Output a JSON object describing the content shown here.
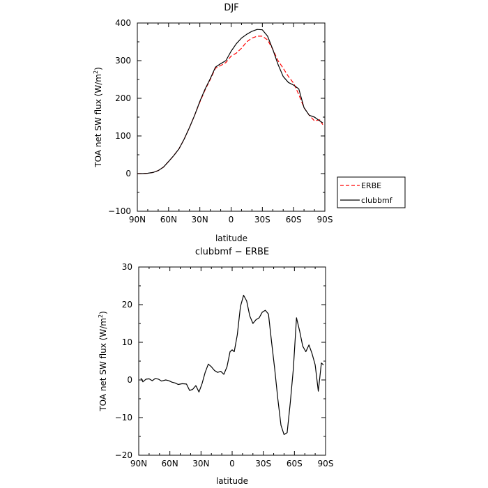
{
  "chart_data": [
    {
      "type": "line",
      "title": "DJF",
      "xlabel": "latitude",
      "ylabel": "TOA net SW flux (W/m",
      "ylabel_sup": "2",
      "ylabel_close": ")",
      "xlim": [
        90,
        -90
      ],
      "ylim": [
        -100,
        400
      ],
      "x_ticks": [
        90,
        60,
        30,
        0,
        -30,
        -60,
        -90
      ],
      "x_tick_labels": [
        "90N",
        "60N",
        "30N",
        "0",
        "30S",
        "60S",
        "90S"
      ],
      "y_ticks": [
        -100,
        0,
        100,
        200,
        300,
        400
      ],
      "y_tick_labels": [
        "−100",
        "0",
        "100",
        "200",
        "300",
        "400"
      ],
      "legend": {
        "placement": "right",
        "entries": [
          {
            "name": "ERBE",
            "color": "#ff0000",
            "dash": true
          },
          {
            "name": "clubbmf",
            "color": "#000000",
            "dash": false
          }
        ]
      },
      "series": [
        {
          "name": "ERBE",
          "color": "#ff0000",
          "dashed": true,
          "x": [
            90,
            85,
            80,
            75,
            70,
            65,
            60,
            55,
            50,
            45,
            40,
            35,
            30,
            25,
            20,
            15,
            10,
            5,
            0,
            -5,
            -10,
            -15,
            -20,
            -25,
            -30,
            -35,
            -40,
            -45,
            -50,
            -55,
            -60,
            -65,
            -70,
            -75,
            -80,
            -85,
            -88
          ],
          "y": [
            0,
            0,
            1,
            3,
            8,
            17,
            32,
            48,
            66,
            92,
            122,
            155,
            190,
            222,
            250,
            280,
            287,
            295,
            312,
            320,
            333,
            350,
            360,
            365,
            365,
            355,
            330,
            300,
            280,
            258,
            240,
            210,
            175,
            155,
            140,
            143,
            130
          ]
        },
        {
          "name": "clubbmf",
          "color": "#000000",
          "dashed": false,
          "x": [
            90,
            85,
            80,
            75,
            70,
            65,
            60,
            55,
            50,
            45,
            40,
            35,
            30,
            25,
            20,
            15,
            10,
            5,
            0,
            -5,
            -10,
            -15,
            -20,
            -25,
            -30,
            -35,
            -40,
            -45,
            -50,
            -55,
            -60,
            -65,
            -70,
            -75,
            -80,
            -85,
            -88
          ],
          "y": [
            0,
            0,
            1,
            3,
            8,
            17,
            32,
            48,
            66,
            92,
            122,
            155,
            192,
            224,
            252,
            283,
            292,
            300,
            325,
            345,
            360,
            370,
            378,
            383,
            382,
            365,
            330,
            290,
            258,
            242,
            235,
            225,
            175,
            155,
            150,
            140,
            135
          ]
        }
      ]
    },
    {
      "type": "line",
      "title": "clubbmf − ERBE",
      "xlabel": "latitude",
      "ylabel": "TOA net SW flux (W/m",
      "ylabel_sup": "2",
      "ylabel_close": ")",
      "xlim": [
        90,
        -90
      ],
      "ylim": [
        -20,
        30
      ],
      "x_ticks": [
        90,
        60,
        30,
        0,
        -30,
        -60,
        -90
      ],
      "x_tick_labels": [
        "90N",
        "60N",
        "30N",
        "0",
        "30S",
        "60S",
        "90S"
      ],
      "y_ticks": [
        -20,
        -10,
        0,
        10,
        20,
        30
      ],
      "y_tick_labels": [
        "−20",
        "−10",
        "0",
        "10",
        "20",
        "30"
      ],
      "series": [
        {
          "name": "clubbmf − ERBE",
          "color": "#000000",
          "dashed": false,
          "x": [
            88,
            86,
            83,
            80,
            77,
            74,
            71,
            68,
            64,
            61,
            58,
            55,
            52,
            48,
            44,
            41,
            38,
            35,
            32,
            29,
            26,
            23,
            20,
            17,
            14,
            11,
            8,
            5,
            2,
            0,
            -2,
            -5,
            -8,
            -11,
            -14,
            -17,
            -20,
            -23,
            -26,
            -29,
            -32,
            -35,
            -38,
            -41,
            -44,
            -47,
            -50,
            -53,
            -56,
            -59,
            -62,
            -65,
            -68,
            -71,
            -74,
            -77,
            -80,
            -83,
            -86,
            -88
          ],
          "y": [
            0.5,
            -0.5,
            0.2,
            0.3,
            -0.2,
            0.4,
            0.2,
            -0.3,
            0.0,
            -0.2,
            -0.6,
            -0.8,
            -1.2,
            -1.0,
            -1.1,
            -2.8,
            -2.5,
            -1.5,
            -3.2,
            -1.0,
            2.0,
            4.2,
            3.5,
            2.5,
            2.0,
            2.3,
            1.5,
            3.5,
            7.5,
            8.0,
            7.5,
            12.0,
            19.5,
            22.5,
            21.0,
            17.0,
            15.0,
            16.0,
            16.5,
            18.0,
            18.5,
            17.5,
            10.0,
            3.0,
            -5.0,
            -12.0,
            -14.5,
            -14.0,
            -6.0,
            3.0,
            16.5,
            13.0,
            9.0,
            7.5,
            9.3,
            7.0,
            4.0,
            -3.0,
            4.5,
            4.0
          ]
        }
      ]
    }
  ]
}
